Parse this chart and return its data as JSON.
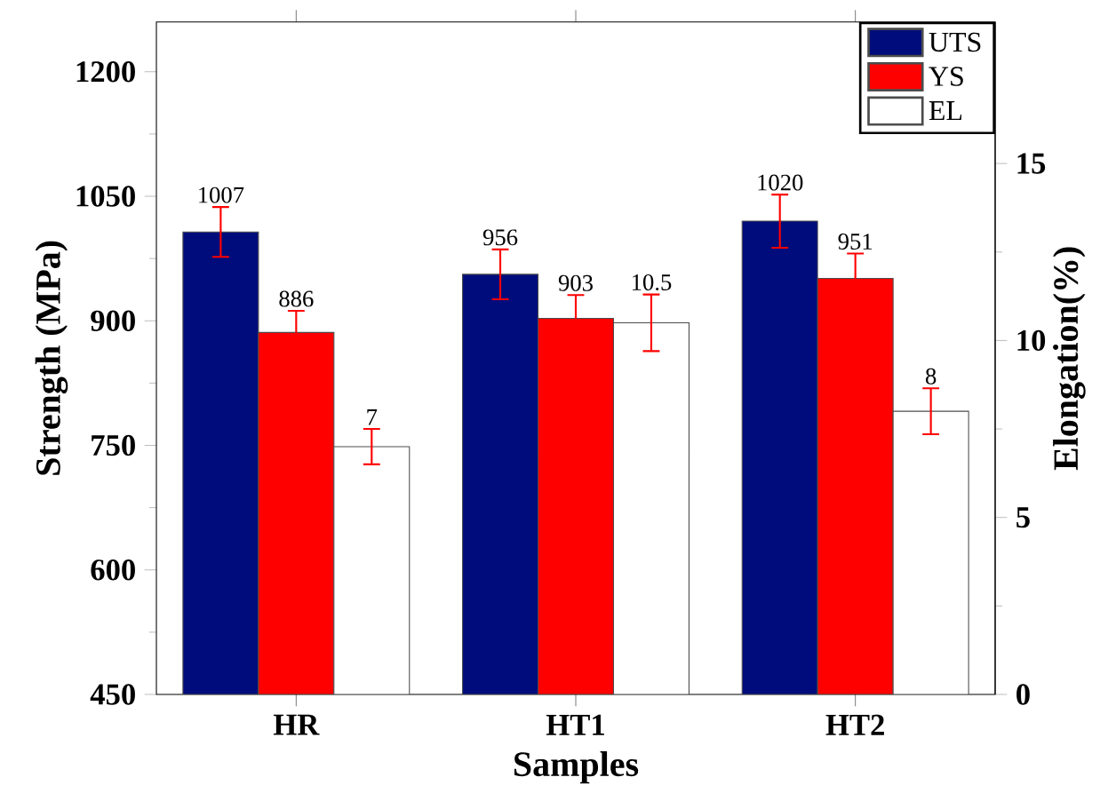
{
  "chart_data": {
    "type": "bar",
    "xlabel": "Samples",
    "ylabel": "Strength (MPa)",
    "y2label": "Elongation(%)",
    "categories": [
      "HR",
      "HT1",
      "HT2"
    ],
    "series": [
      {
        "name": "UTS",
        "color": "#000c7b",
        "values": [
          1007,
          956,
          1020
        ],
        "errors": [
          30,
          30,
          32
        ]
      },
      {
        "name": "YS",
        "color": "#ff0000",
        "values": [
          886,
          903,
          951
        ],
        "errors": [
          26,
          28,
          30
        ]
      },
      {
        "name": "EL",
        "color": "#ffffff",
        "values": [
          7,
          10.5,
          8
        ],
        "errors": [
          0.5,
          0.8,
          0.65
        ],
        "axis": "y2"
      }
    ],
    "ylim": [
      450,
      1260
    ],
    "yticks": [
      450,
      600,
      750,
      900,
      1050,
      1200
    ],
    "y2lim": [
      0,
      19
    ],
    "y2ticks": [
      0,
      5,
      10,
      15
    ],
    "data_labels": true,
    "legend": "top right",
    "grid": false
  }
}
